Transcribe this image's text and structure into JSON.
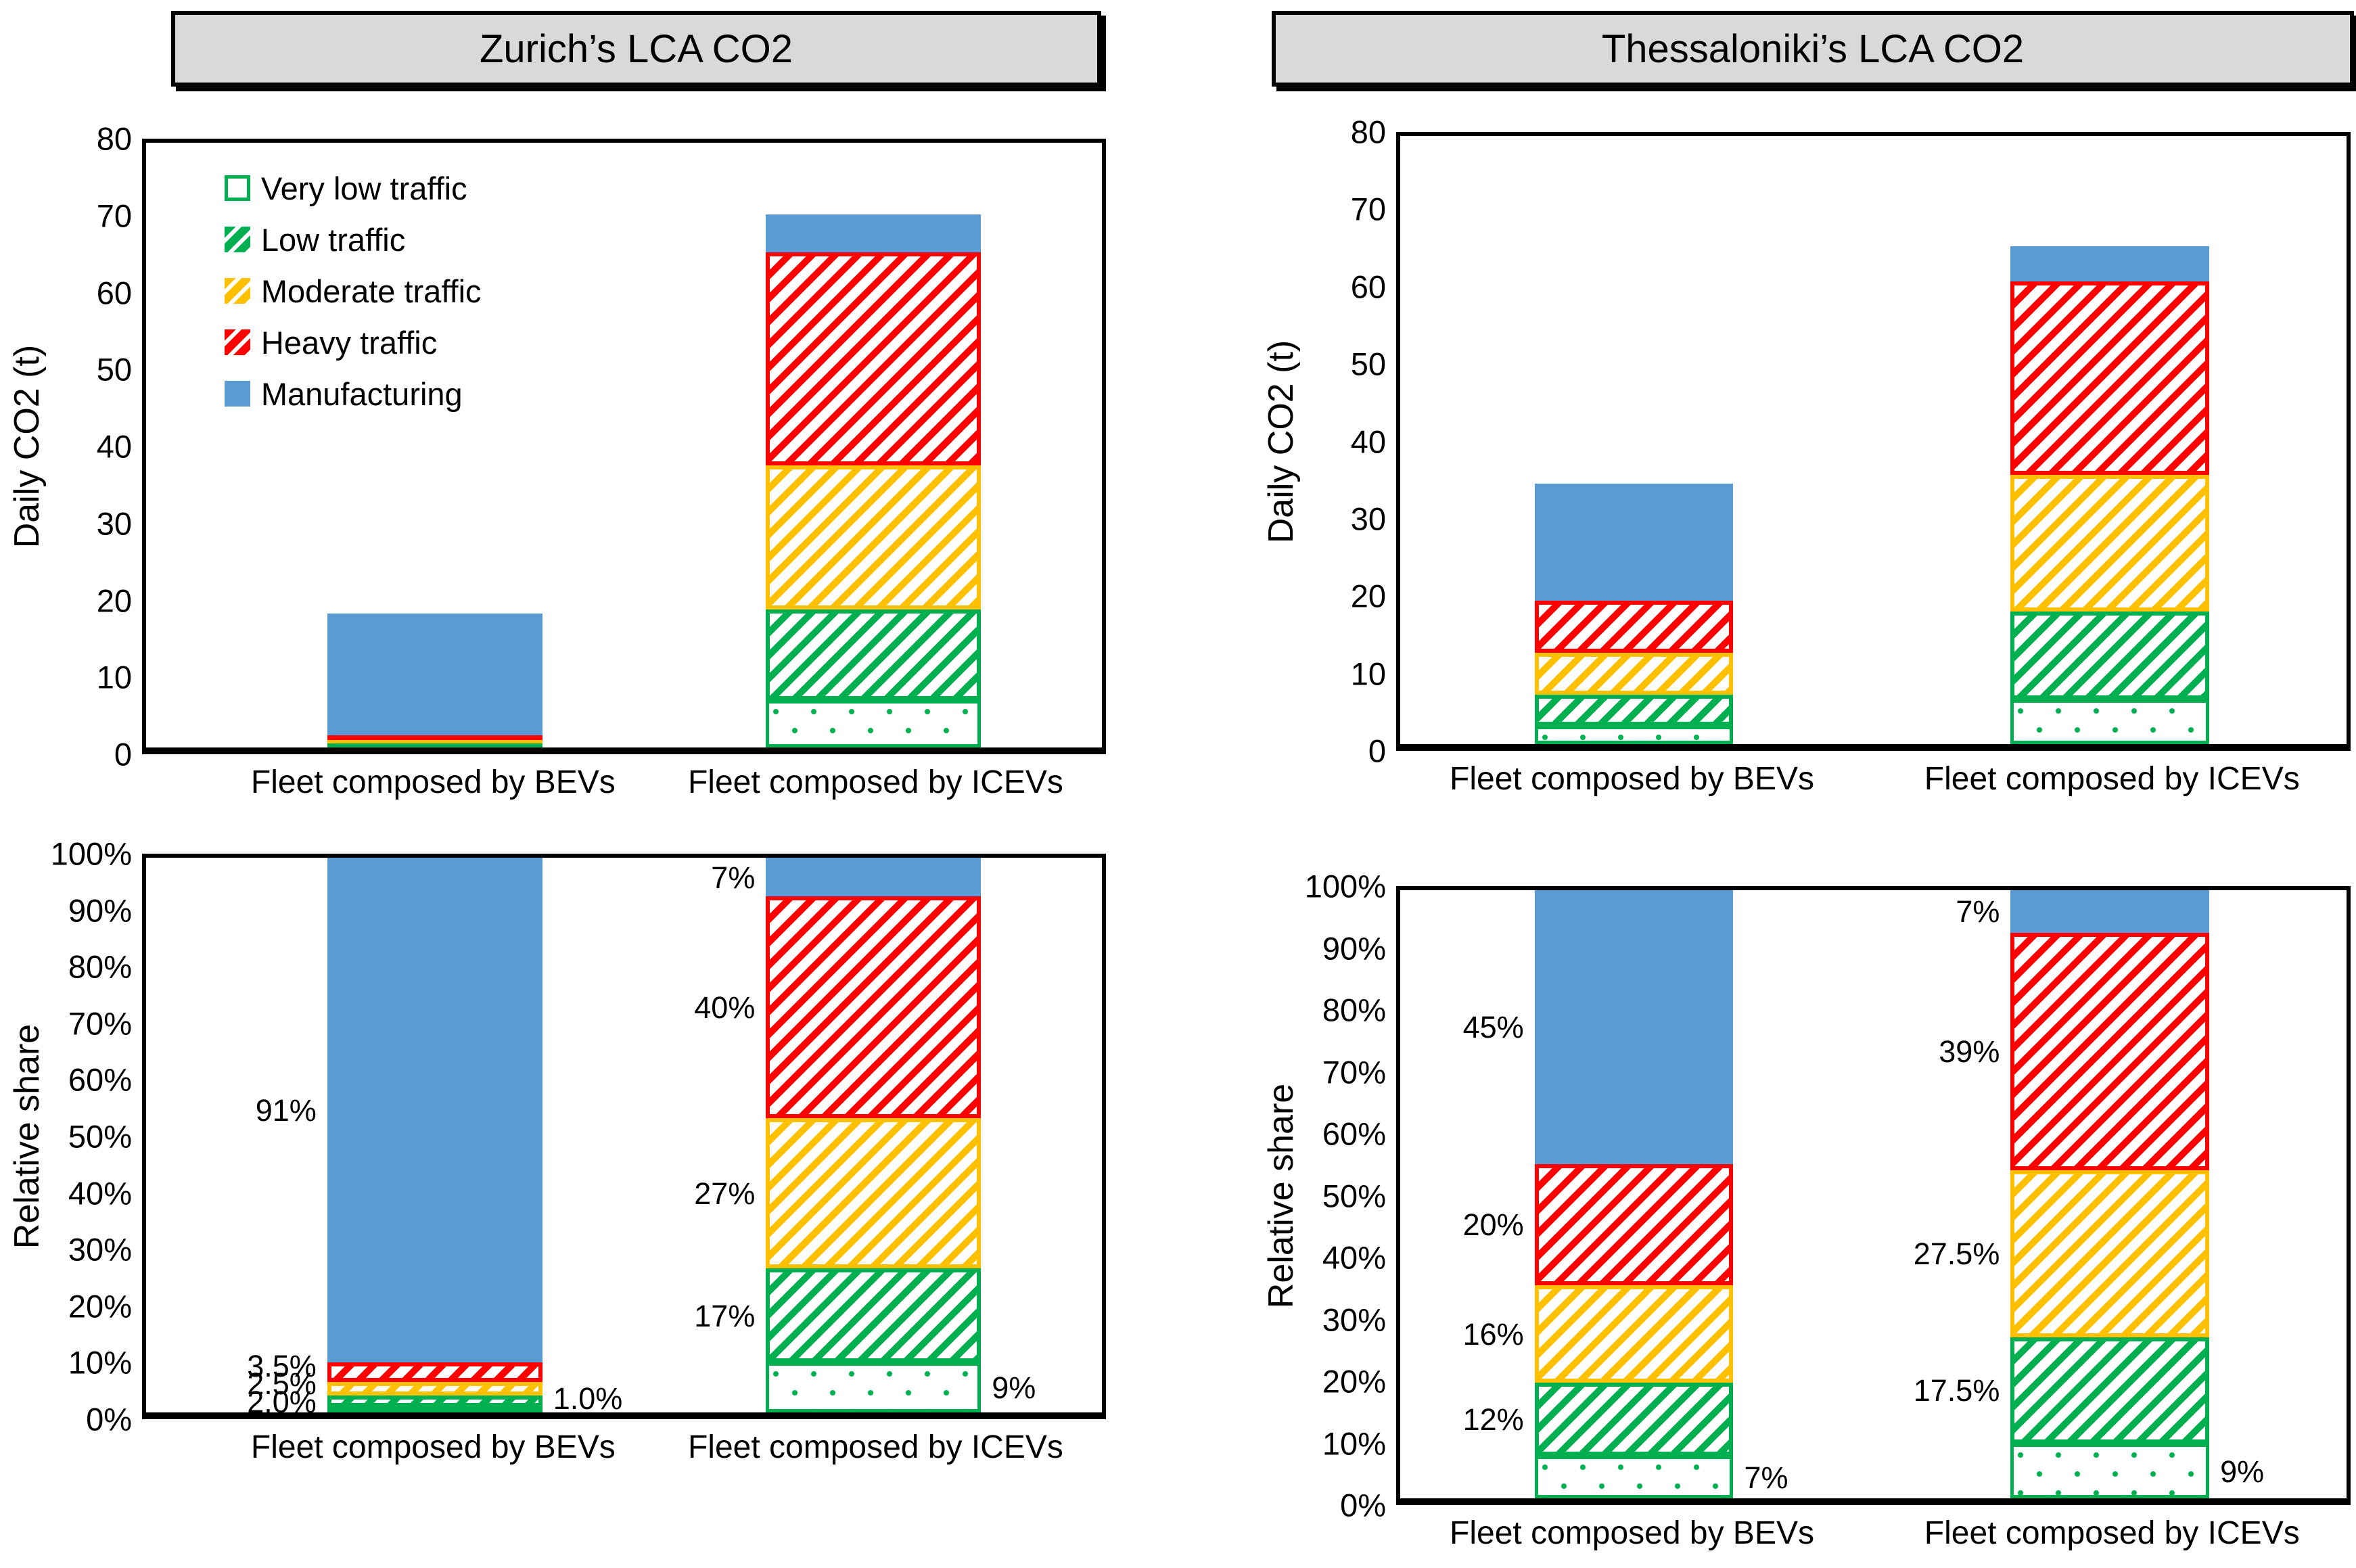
{
  "colors": {
    "very_low_green": "#00B050",
    "low_green": "#00B050",
    "moderate_yellow": "#FFC000",
    "heavy_red": "#FF0000",
    "manufacturing_blue": "#5B9BD5",
    "title_box_bg": "#D9D9D9"
  },
  "legend": {
    "items": [
      {
        "label": "Very low traffic",
        "swatch": "very-low"
      },
      {
        "label": "Low traffic",
        "swatch": "low"
      },
      {
        "label": "Moderate traffic",
        "swatch": "moderate"
      },
      {
        "label": "Heavy traffic",
        "swatch": "heavy"
      },
      {
        "label": "Manufacturing",
        "swatch": "manufacturing"
      }
    ]
  },
  "chart_data": [
    {
      "id": "zurich-absolute",
      "type": "bar",
      "stacked": true,
      "grid": false,
      "legend_visible": true,
      "legend_position": "top-left-inside",
      "title": "Zurich’s LCA CO2",
      "ylabel": "Daily CO2 (t)",
      "ylim": [
        0,
        80
      ],
      "yticks": [
        0,
        10,
        20,
        30,
        40,
        50,
        60,
        70,
        80
      ],
      "ytick_labels": [
        "0",
        "10",
        "20",
        "30",
        "40",
        "50",
        "60",
        "70",
        "80"
      ],
      "categories": [
        "Fleet composed by BEVs",
        "Fleet composed by ICEVs"
      ],
      "series": [
        {
          "name": "Very low traffic",
          "values": [
            0.2,
            6.3
          ]
        },
        {
          "name": "Low traffic",
          "values": [
            0.35,
            12.0
          ]
        },
        {
          "name": "Moderate traffic",
          "values": [
            0.45,
            19.0
          ]
        },
        {
          "name": "Heavy traffic",
          "values": [
            0.6,
            28.2
          ]
        },
        {
          "name": "Manufacturing",
          "values": [
            16.1,
            5.0
          ]
        }
      ]
    },
    {
      "id": "thessaloniki-absolute",
      "type": "bar",
      "stacked": true,
      "grid": false,
      "legend_visible": false,
      "title": "Thessaloniki’s LCA CO2",
      "ylabel": "Daily CO2 (t)",
      "ylim": [
        0,
        80
      ],
      "yticks": [
        0,
        10,
        20,
        30,
        40,
        50,
        60,
        70,
        80
      ],
      "ytick_labels": [
        "0",
        "10",
        "20",
        "30",
        "40",
        "50",
        "60",
        "70",
        "80"
      ],
      "categories": [
        "Fleet composed by BEVs",
        "Fleet composed by ICEVs"
      ],
      "series": [
        {
          "name": "Very low traffic",
          "values": [
            2.4,
            5.9
          ]
        },
        {
          "name": "Low traffic",
          "values": [
            4.1,
            11.5
          ]
        },
        {
          "name": "Moderate traffic",
          "values": [
            5.5,
            18.0
          ]
        },
        {
          "name": "Heavy traffic",
          "values": [
            6.9,
            25.5
          ]
        },
        {
          "name": "Manufacturing",
          "values": [
            15.4,
            4.6
          ]
        }
      ]
    },
    {
      "id": "zurich-relative",
      "type": "bar",
      "stacked": true,
      "stack_unit": "percent",
      "grid": false,
      "legend_visible": false,
      "title": null,
      "ylabel": "Relative share",
      "ylim": [
        0,
        100
      ],
      "yticks": [
        0,
        10,
        20,
        30,
        40,
        50,
        60,
        70,
        80,
        90,
        100
      ],
      "ytick_labels": [
        "0%",
        "10%",
        "20%",
        "30%",
        "40%",
        "50%",
        "60%",
        "70%",
        "80%",
        "90%",
        "100%"
      ],
      "categories": [
        "Fleet composed by BEVs",
        "Fleet composed by ICEVs"
      ],
      "series": [
        {
          "name": "Very low traffic",
          "values": [
            1.0,
            9
          ],
          "labels": [
            "1.0%",
            "9%"
          ],
          "label_side": "right"
        },
        {
          "name": "Low traffic",
          "values": [
            2.0,
            17
          ],
          "labels": [
            "2.0%",
            "17%"
          ],
          "label_side": "left"
        },
        {
          "name": "Moderate traffic",
          "values": [
            2.5,
            27
          ],
          "labels": [
            "2.5%",
            "27%"
          ],
          "label_side": "left"
        },
        {
          "name": "Heavy traffic",
          "values": [
            3.5,
            40
          ],
          "labels": [
            "3.5%",
            "40%"
          ],
          "label_side": "left"
        },
        {
          "name": "Manufacturing",
          "values": [
            91.0,
            7
          ],
          "labels": [
            "91%",
            "7%"
          ],
          "label_side": "left"
        }
      ]
    },
    {
      "id": "thessaloniki-relative",
      "type": "bar",
      "stacked": true,
      "stack_unit": "percent",
      "grid": false,
      "legend_visible": false,
      "title": null,
      "ylabel": "Relative share",
      "ylim": [
        0,
        100
      ],
      "yticks": [
        0,
        10,
        20,
        30,
        40,
        50,
        60,
        70,
        80,
        90,
        100
      ],
      "ytick_labels": [
        "0%",
        "10%",
        "20%",
        "30%",
        "40%",
        "50%",
        "60%",
        "70%",
        "80%",
        "90%",
        "100%"
      ],
      "categories": [
        "Fleet composed by BEVs",
        "Fleet composed by ICEVs"
      ],
      "series": [
        {
          "name": "Very low traffic",
          "values": [
            7,
            9
          ],
          "labels": [
            "7%",
            "9%"
          ],
          "label_side": "right"
        },
        {
          "name": "Low traffic",
          "values": [
            12,
            17.5
          ],
          "labels": [
            "12%",
            "17.5%"
          ],
          "label_side": "left"
        },
        {
          "name": "Moderate traffic",
          "values": [
            16,
            27.5
          ],
          "labels": [
            "16%",
            "27.5%"
          ],
          "label_side": "left"
        },
        {
          "name": "Heavy traffic",
          "values": [
            20,
            39
          ],
          "labels": [
            "20%",
            "39%"
          ],
          "label_side": "left"
        },
        {
          "name": "Manufacturing",
          "values": [
            45,
            7
          ],
          "labels": [
            "45%",
            "7%"
          ],
          "label_side": "left"
        }
      ]
    }
  ]
}
